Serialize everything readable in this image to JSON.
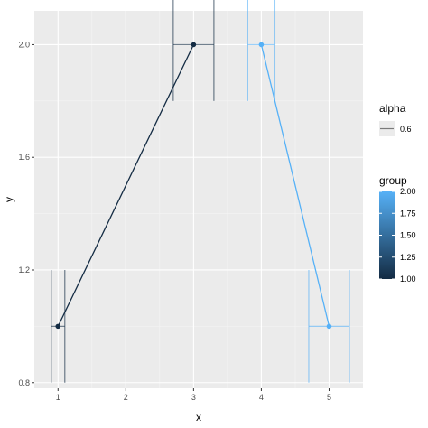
{
  "chart_data": {
    "type": "line",
    "xlabel": "x",
    "ylabel": "y",
    "xlim": [
      0.65,
      5.5
    ],
    "ylim": [
      0.78,
      2.12
    ],
    "x_ticks": [
      1,
      2,
      3,
      4,
      5
    ],
    "y_ticks": [
      0.8,
      1.2,
      1.6,
      2.0
    ],
    "x_tick_labels": [
      "1",
      "2",
      "3",
      "4",
      "5"
    ],
    "y_tick_labels": [
      "0.8",
      "1.2",
      "1.6",
      "2.0"
    ],
    "grid": true,
    "points": [
      {
        "x": 1,
        "y": 1.0,
        "group": 1,
        "xerr": [
          0.9,
          1.1
        ],
        "yerr": [
          0.8,
          1.2
        ]
      },
      {
        "x": 3,
        "y": 2.0,
        "group": 1,
        "xerr": [
          2.7,
          3.3
        ],
        "yerr": [
          1.8,
          2.2
        ]
      },
      {
        "x": 4,
        "y": 2.0,
        "group": 2,
        "xerr": [
          3.8,
          4.2
        ],
        "yerr": [
          1.8,
          2.2
        ]
      },
      {
        "x": 5,
        "y": 1.0,
        "group": 2,
        "xerr": [
          4.7,
          5.3
        ],
        "yerr": [
          0.8,
          1.2
        ]
      }
    ],
    "legend_alpha": {
      "title": "alpha",
      "label": "0.6"
    },
    "legend_group": {
      "title": "group",
      "ticks": [
        1.0,
        1.25,
        1.5,
        1.75,
        2.0
      ],
      "tick_labels": [
        "1.00",
        "1.25",
        "1.50",
        "1.75",
        "2.00"
      ],
      "low_color": "#132B43",
      "high_color": "#56B1F7"
    },
    "legend_position": "right"
  }
}
